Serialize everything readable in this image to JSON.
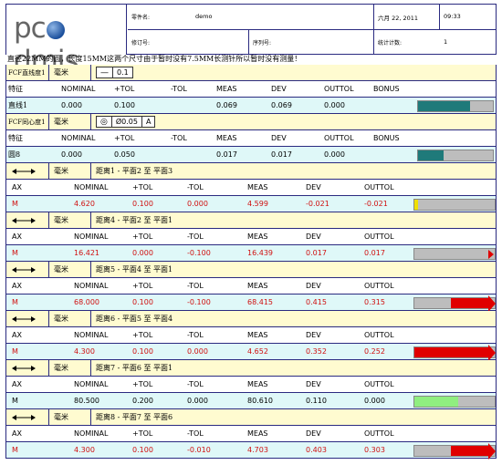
{
  "header": {
    "logo_text": "pc dmis",
    "part_label": "零件名:",
    "part_value": "demo",
    "date": "六月 22, 2011",
    "time": "09:33",
    "rev_label": "修订号:",
    "serial_label": "序列号:",
    "count_label": "统计计数:",
    "count_value": "1"
  },
  "note": "直径22MM的圆，长度15MM这两个尺寸由于暂时没有7.5MM长测针所以暂时没有测量！",
  "fcf_blocks": [
    {
      "fcf_label": "FCF直线度1",
      "unit": "毫米",
      "symbol": "—",
      "tolerance": "0.1",
      "datum": "",
      "headers": [
        "特征",
        "NOMINAL",
        "+TOL",
        "-TOL",
        "MEAS",
        "DEV",
        "OUTTOL",
        "BONUS"
      ],
      "row": [
        "直线1",
        "0.000",
        "0.100",
        "",
        "0.069",
        "0.069",
        "0.000",
        ""
      ],
      "bar_color": "#1f7a7a",
      "bar_fraction": 0.69
    },
    {
      "fcf_label": "FCF同心度1",
      "unit": "毫米",
      "symbol": "◎",
      "tolerance": "Ø0.05",
      "datum": "A",
      "headers": [
        "特征",
        "NOMINAL",
        "+TOL",
        "-TOL",
        "MEAS",
        "DEV",
        "OUTTOL",
        "BONUS"
      ],
      "row": [
        "圆8",
        "0.000",
        "0.050",
        "",
        "0.017",
        "0.017",
        "0.000",
        ""
      ],
      "bar_color": "#1f7a7a",
      "bar_fraction": 0.34
    }
  ],
  "dist_blocks": [
    {
      "unit": "毫米",
      "title": "距离1 - 平面2 至 平面3",
      "headers": [
        "AX",
        "NOMINAL",
        "+TOL",
        "-TOL",
        "MEAS",
        "DEV",
        "OUTTOL"
      ],
      "row": [
        "M",
        "4.620",
        "0.100",
        "0.000",
        "4.599",
        "-0.021",
        "-0.021"
      ],
      "red": true,
      "bar_kind": "low",
      "bar_color": "#f0e000"
    },
    {
      "unit": "毫米",
      "title": "距离4 - 平面2 至 平面1",
      "headers": [
        "AX",
        "NOMINAL",
        "+TOL",
        "-TOL",
        "MEAS",
        "DEV",
        "OUTTOL"
      ],
      "row": [
        "M",
        "16.421",
        "0.000",
        "-0.100",
        "16.439",
        "0.017",
        "0.017"
      ],
      "red": true,
      "bar_kind": "high_small",
      "bar_color": "#e00000"
    },
    {
      "unit": "毫米",
      "title": "距离5 - 平面4 至 平面1",
      "headers": [
        "AX",
        "NOMINAL",
        "+TOL",
        "-TOL",
        "MEAS",
        "DEV",
        "OUTTOL"
      ],
      "row": [
        "M",
        "68.000",
        "0.100",
        "-0.100",
        "68.415",
        "0.415",
        "0.315"
      ],
      "red": true,
      "bar_kind": "high_big",
      "bar_color": "#e00000"
    },
    {
      "unit": "毫米",
      "title": "距离6 - 平面5 至 平面4",
      "headers": [
        "AX",
        "NOMINAL",
        "+TOL",
        "-TOL",
        "MEAS",
        "DEV",
        "OUTTOL"
      ],
      "row": [
        "M",
        "4.300",
        "0.100",
        "0.000",
        "4.652",
        "0.352",
        "0.252"
      ],
      "red": true,
      "bar_kind": "high_full",
      "bar_color": "#e00000"
    },
    {
      "unit": "毫米",
      "title": "距离7 - 平面6 至 平面1",
      "headers": [
        "AX",
        "NOMINAL",
        "+TOL",
        "-TOL",
        "MEAS",
        "DEV",
        "OUTTOL"
      ],
      "row": [
        "M",
        "80.500",
        "0.200",
        "0.000",
        "80.610",
        "0.110",
        "0.000"
      ],
      "red": false,
      "bar_kind": "ok",
      "bar_color": "#90ee80"
    },
    {
      "unit": "毫米",
      "title": "距离8 - 平面7 至 平面6",
      "headers": [
        "AX",
        "NOMINAL",
        "+TOL",
        "-TOL",
        "MEAS",
        "DEV",
        "OUTTOL"
      ],
      "row": [
        "M",
        "4.300",
        "0.100",
        "-0.010",
        "4.703",
        "0.403",
        "0.303"
      ],
      "red": true,
      "bar_kind": "high_big",
      "bar_color": "#e00000"
    }
  ]
}
